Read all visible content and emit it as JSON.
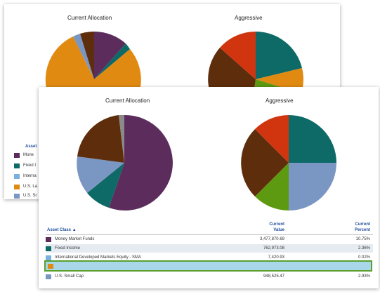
{
  "back_panel": {
    "chart_titles": [
      "Current Allocation",
      "Aggressive"
    ],
    "legend_header": "Asset",
    "legend_items": [
      {
        "label": "Mone",
        "color": "#5c2d5c"
      },
      {
        "label": "Fixed I",
        "color": "#0e6a66"
      },
      {
        "label": "Interna",
        "color": "#7ab0dd"
      },
      {
        "label": "U.S. La",
        "color": "#e08a12"
      },
      {
        "label": "U.S. Sr",
        "color": "#7a96c2"
      }
    ]
  },
  "front_panel": {
    "chart_titles": [
      "Current Allocation",
      "Aggressive"
    ],
    "table": {
      "headers": {
        "asset_class": "Asset Class",
        "value_line1": "Current",
        "value_line2": "Value",
        "percent_line1": "Current",
        "percent_line2": "Percent"
      },
      "rows": [
        {
          "label": "Money Market Funds",
          "value": "3,477,870.69",
          "percent": "10.75%",
          "color": "#5c2d5c"
        },
        {
          "label": "Fixed Income",
          "value": "762,973.08",
          "percent": "2.36%",
          "color": "#0e6a66"
        },
        {
          "label": "International Developed Markets Equity - SMA",
          "value": "7,420.93",
          "percent": "0.02%",
          "color": "#7ab0dd"
        },
        {
          "label": "",
          "value": "",
          "percent": "",
          "color": "#e08a12"
        },
        {
          "label": "U.S. Small Cap",
          "value": "948,525.47",
          "percent": "2.93%",
          "color": "#7a96c2"
        }
      ]
    }
  },
  "colors": {
    "money_market": "#5c2d5c",
    "fixed_income": "#0e6a66",
    "intl": "#7ab0dd",
    "us_large": "#e08a12",
    "us_small": "#7a96c2",
    "dark_brown": "#5e2d0c",
    "red": "#d0350f",
    "green": "#5e9a11",
    "highlight_border": "#5aa02c",
    "highlight_fill": "#a9d6e8"
  }
}
